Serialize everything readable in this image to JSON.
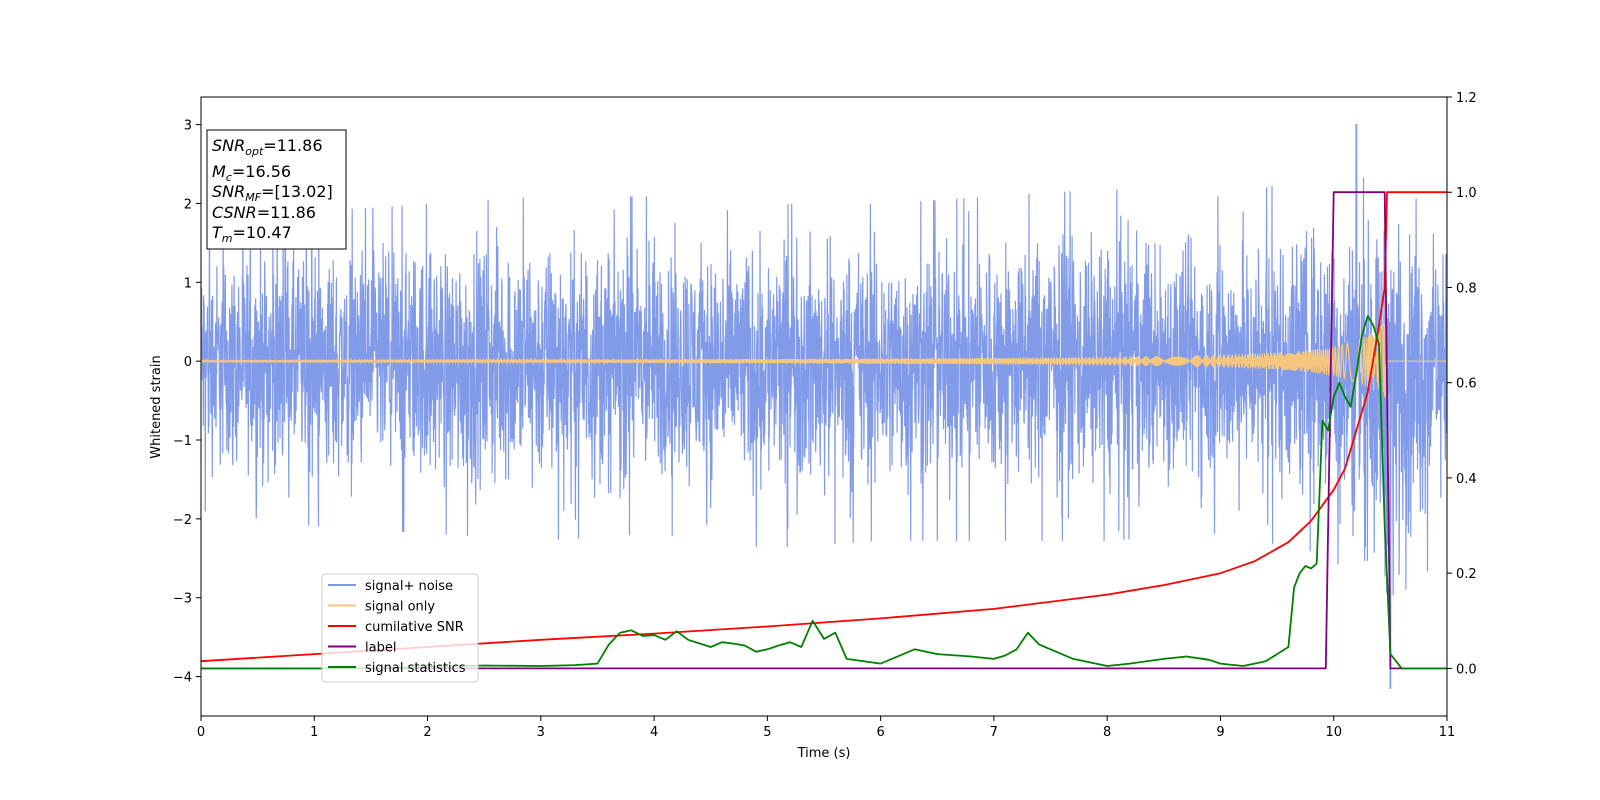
{
  "chart_data": {
    "type": "line",
    "xlabel": "Time (s)",
    "ylabel": "Whitened strain",
    "xlim": [
      0,
      11
    ],
    "ylim_left": [
      -4.5,
      3.35
    ],
    "ylim_right": [
      -0.1,
      1.2
    ],
    "x_ticks": [
      "0",
      "1",
      "2",
      "3",
      "4",
      "5",
      "6",
      "7",
      "8",
      "9",
      "10",
      "11"
    ],
    "y_left_ticks": [
      "3",
      "2",
      "1",
      "0",
      "−1",
      "−2",
      "−3",
      "−4"
    ],
    "y_right_ticks": [
      "1.2",
      "1.0",
      "0.8",
      "0.6",
      "0.4",
      "0.2",
      "0.0"
    ],
    "legend_position": "lower-left",
    "legend": [
      {
        "label": "signal+ noise",
        "color": "#7b96e8"
      },
      {
        "label": "signal only",
        "color": "#f5c77e"
      },
      {
        "label": "cumilative SNR",
        "color": "#ff0000"
      },
      {
        "label": "label",
        "color": "#800080"
      },
      {
        "label": "signal statistics",
        "color": "#008000"
      }
    ],
    "annotation": {
      "lines": [
        {
          "name": "SNR",
          "sub": "opt",
          "value": "=11.86"
        },
        {
          "name": "M",
          "sub": "c",
          "value": "=16.56"
        },
        {
          "name": "SNR",
          "sub": "MF",
          "value": "=[13.02]"
        },
        {
          "name": "CSNR",
          "sub": "",
          "value": "=11.86"
        },
        {
          "name": "T",
          "sub": "m",
          "value": "=10.47"
        }
      ]
    },
    "series": [
      {
        "name": "signal+ noise",
        "axis": "left",
        "color": "#7b96e8",
        "note_style": "dense noise band roughly within ±2.3, peaks to about +3.0 near t=10.2 and −4.15 near t=10.5",
        "envelope_x": [
          0,
          1,
          2,
          3,
          4,
          5,
          6,
          7,
          8,
          9,
          10,
          10.5,
          11
        ],
        "envelope_hi": [
          1.9,
          2.0,
          2.1,
          2.2,
          2.2,
          2.1,
          2.1,
          2.2,
          2.3,
          2.2,
          2.5,
          2.4,
          1.9
        ],
        "envelope_lo": [
          -2.0,
          -2.2,
          -2.3,
          -2.4,
          -2.3,
          -2.5,
          -2.4,
          -2.4,
          -2.4,
          -2.3,
          -2.6,
          -4.15,
          -2.1
        ]
      },
      {
        "name": "signal only",
        "axis": "left",
        "color": "#f5c77e",
        "x": [
          0,
          1,
          2,
          3,
          4,
          5,
          6,
          7,
          8,
          8.5,
          9,
          9.5,
          9.8,
          10,
          10.2,
          10.3,
          10.4,
          10.45,
          10.47,
          10.5,
          11
        ],
        "amplitude": [
          0.01,
          0.012,
          0.015,
          0.018,
          0.022,
          0.027,
          0.033,
          0.042,
          0.055,
          0.065,
          0.08,
          0.11,
          0.14,
          0.19,
          0.26,
          0.33,
          0.42,
          0.48,
          0.5,
          0.0,
          0.0
        ]
      },
      {
        "name": "cumilative SNR",
        "axis": "right",
        "color": "#ff0000",
        "x": [
          0,
          1,
          2,
          3,
          4,
          5,
          6,
          7,
          8,
          8.5,
          9,
          9.3,
          9.6,
          9.8,
          10,
          10.1,
          10.2,
          10.3,
          10.4,
          10.45,
          10.47,
          10.5,
          11
        ],
        "y": [
          0.015,
          0.03,
          0.045,
          0.06,
          0.073,
          0.088,
          0.105,
          0.125,
          0.155,
          0.175,
          0.2,
          0.225,
          0.265,
          0.31,
          0.375,
          0.42,
          0.5,
          0.58,
          0.72,
          0.8,
          1.0,
          1.0,
          1.0
        ]
      },
      {
        "name": "label",
        "axis": "right",
        "color": "#800080",
        "x": [
          0,
          9.93,
          10.0,
          10.45,
          10.5,
          11
        ],
        "y": [
          0,
          0,
          1,
          1,
          0,
          0
        ]
      },
      {
        "name": "signal statistics",
        "axis": "right",
        "color": "#008000",
        "x": [
          0,
          0.5,
          1,
          1.5,
          2,
          2.5,
          3,
          3.3,
          3.5,
          3.6,
          3.7,
          3.8,
          3.9,
          4.0,
          4.1,
          4.2,
          4.3,
          4.5,
          4.6,
          4.7,
          4.8,
          4.9,
          5.0,
          5.1,
          5.2,
          5.3,
          5.4,
          5.5,
          5.6,
          5.7,
          6.0,
          6.2,
          6.3,
          6.5,
          6.8,
          7.0,
          7.1,
          7.2,
          7.3,
          7.4,
          7.5,
          7.7,
          8.0,
          8.2,
          8.5,
          8.7,
          8.9,
          9.0,
          9.2,
          9.4,
          9.6,
          9.65,
          9.7,
          9.75,
          9.8,
          9.85,
          9.9,
          9.95,
          10.0,
          10.05,
          10.1,
          10.15,
          10.2,
          10.25,
          10.3,
          10.35,
          10.4,
          10.45,
          10.5,
          10.6,
          11
        ],
        "y": [
          0,
          0,
          0,
          0,
          0.003,
          0.006,
          0.005,
          0.007,
          0.01,
          0.05,
          0.075,
          0.08,
          0.068,
          0.07,
          0.06,
          0.078,
          0.06,
          0.045,
          0.055,
          0.052,
          0.048,
          0.035,
          0.04,
          0.048,
          0.055,
          0.045,
          0.1,
          0.062,
          0.075,
          0.02,
          0.01,
          0.03,
          0.04,
          0.03,
          0.025,
          0.02,
          0.027,
          0.04,
          0.075,
          0.05,
          0.04,
          0.02,
          0.005,
          0.01,
          0.02,
          0.025,
          0.018,
          0.01,
          0.005,
          0.015,
          0.045,
          0.17,
          0.2,
          0.215,
          0.21,
          0.22,
          0.52,
          0.5,
          0.57,
          0.6,
          0.57,
          0.55,
          0.62,
          0.7,
          0.74,
          0.72,
          0.68,
          0.3,
          0.03,
          0.0,
          0.0
        ]
      }
    ]
  }
}
